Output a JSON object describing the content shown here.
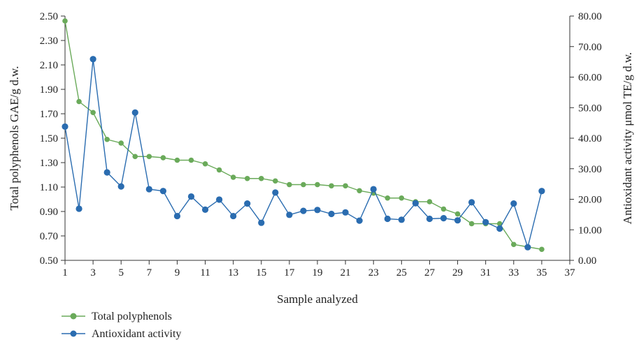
{
  "chart_data": {
    "type": "line",
    "xlabel": "Sample analyzed",
    "ylabel_left": "Total polyphenols GAE/g d.w.",
    "ylabel_right": "Antioxidant activity μmol TE/g d.w.",
    "x_ticks": [
      "1",
      "3",
      "5",
      "7",
      "9",
      "11",
      "13",
      "15",
      "17",
      "19",
      "21",
      "23",
      "25",
      "27",
      "29",
      "31",
      "33",
      "35",
      "37"
    ],
    "y_left_ticks": [
      "0.50",
      "0.70",
      "0.90",
      "1.10",
      "1.30",
      "1.50",
      "1.70",
      "1.90",
      "2.10",
      "2.30",
      "2.50"
    ],
    "y_right_ticks": [
      "0.00",
      "10.00",
      "20.00",
      "30.00",
      "40.00",
      "50.00",
      "60.00",
      "70.00",
      "80.00"
    ],
    "xlim": [
      1,
      37
    ],
    "ylim_left": [
      0.5,
      2.5
    ],
    "ylim_right": [
      0,
      80
    ],
    "x": [
      1,
      2,
      3,
      4,
      5,
      6,
      7,
      8,
      9,
      10,
      11,
      12,
      13,
      14,
      15,
      16,
      17,
      18,
      19,
      20,
      21,
      22,
      23,
      24,
      25,
      26,
      27,
      28,
      29,
      30,
      31,
      32,
      33,
      34,
      35
    ],
    "series": [
      {
        "name": "Total polyphenols",
        "axis": "left",
        "color": "#6aaa5a",
        "values": [
          2.46,
          1.8,
          1.71,
          1.49,
          1.46,
          1.35,
          1.35,
          1.34,
          1.32,
          1.32,
          1.29,
          1.24,
          1.18,
          1.17,
          1.17,
          1.15,
          1.12,
          1.12,
          1.12,
          1.11,
          1.11,
          1.07,
          1.05,
          1.01,
          1.01,
          0.98,
          0.98,
          0.92,
          0.88,
          0.8,
          0.8,
          0.8,
          0.63,
          0.61,
          0.59
        ]
      },
      {
        "name": "Antioxidant activity",
        "axis": "right",
        "color": "#2a6cb0",
        "values": [
          43.8,
          16.9,
          65.9,
          28.8,
          24.2,
          48.4,
          23.3,
          22.7,
          14.5,
          20.9,
          16.6,
          19.9,
          14.5,
          18.6,
          12.3,
          22.2,
          14.9,
          16.2,
          16.5,
          15.2,
          15.7,
          13.0,
          23.3,
          13.6,
          13.3,
          18.7,
          13.6,
          13.8,
          13.1,
          19.0,
          12.5,
          10.4,
          18.6,
          4.3,
          22.7
        ]
      }
    ],
    "legend": {
      "position": "bottom-left",
      "entries": [
        "Total polyphenols",
        "Antioxidant activity"
      ]
    },
    "grid": false
  }
}
